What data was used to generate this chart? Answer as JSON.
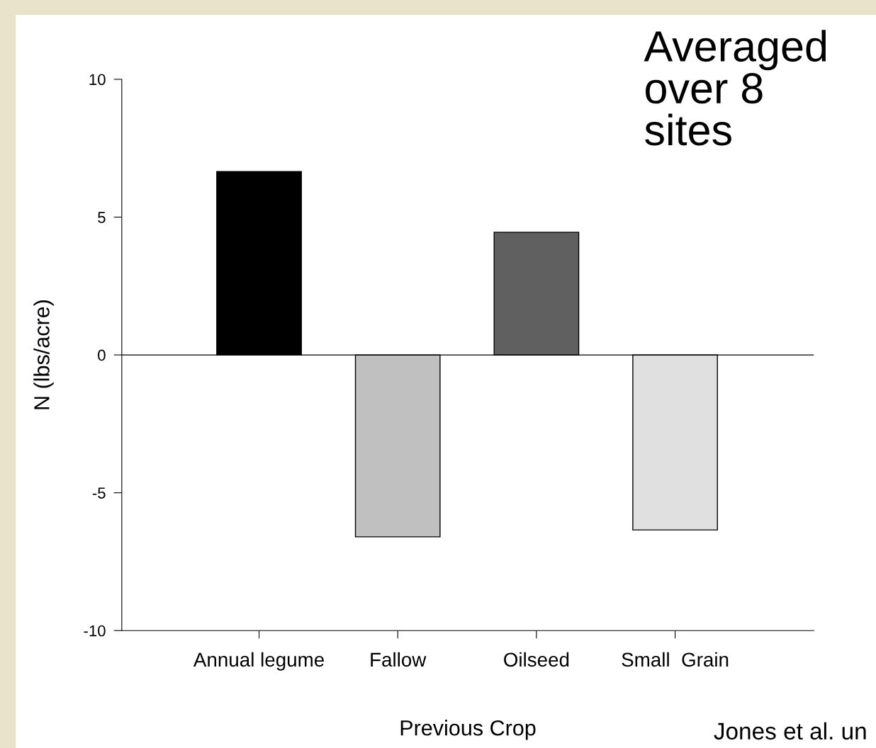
{
  "chart_data": {
    "type": "bar",
    "xlabel": "Previous Crop",
    "ylabel": "N (lbs/acre)",
    "categories": [
      "Annual legume",
      "Fallow",
      "Oilseed",
      "Small  Grain"
    ],
    "values": [
      6.65,
      -6.6,
      4.45,
      -6.35
    ],
    "colors": [
      "#000000",
      "#c0c0c0",
      "#606060",
      "#e0e0e0"
    ],
    "ylim": [
      -10,
      10
    ],
    "yticks": [
      -10,
      -5,
      0,
      5,
      10
    ],
    "grid": false,
    "legend": false,
    "ref_lines": [
      {
        "axis": "y",
        "value": 0,
        "color": "#000000"
      }
    ],
    "annotations": [
      "Averaged\nover 8\nsites",
      "Jones et al. un"
    ]
  }
}
